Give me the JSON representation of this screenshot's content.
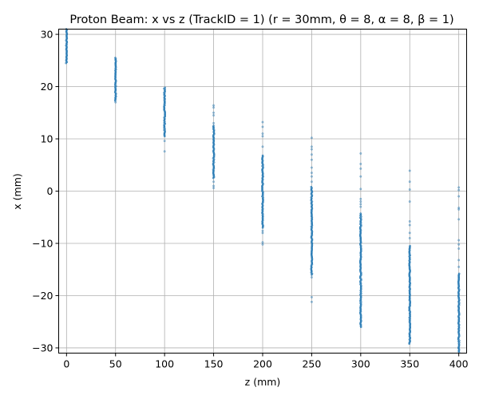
{
  "chart_data": {
    "type": "scatter",
    "title": "Proton Beam: x vs z (TrackID = 1) (r = 30mm, θ = 8, α = 8, β = 1)",
    "xlabel": "z (mm)",
    "ylabel": "x (mm)",
    "xlim": [
      -8,
      408
    ],
    "ylim": [
      -31,
      31
    ],
    "x_ticks": [
      0,
      50,
      100,
      150,
      200,
      250,
      300,
      350,
      400
    ],
    "y_ticks": [
      -30,
      -20,
      -10,
      0,
      10,
      20,
      30
    ],
    "grid": true,
    "marker_color": "#1f77b4",
    "series": [
      {
        "columns": [
          {
            "z": 0,
            "core": [
              24.5,
              31
            ],
            "outliers": []
          },
          {
            "z": 50,
            "core": [
              17.3,
              25.5
            ],
            "outliers": [
              17.0
            ]
          },
          {
            "z": 100,
            "core": [
              10.5,
              19.8
            ],
            "outliers": [
              7.6,
              9.6
            ]
          },
          {
            "z": 150,
            "core": [
              2.5,
              12.5
            ],
            "outliers": [
              0.6,
              1.0,
              1.8,
              13.0,
              14.5,
              15.0,
              16.0,
              16.4
            ]
          },
          {
            "z": 200,
            "core": [
              -7.0,
              6.8
            ],
            "outliers": [
              -10.2,
              -9.8,
              -8.0,
              -7.6,
              8.5,
              10.5,
              11.0,
              12.3,
              13.2
            ]
          },
          {
            "z": 250,
            "core": [
              -16.0,
              0.8
            ],
            "outliers": [
              -21.2,
              -20.3,
              -16.5,
              1.8,
              2.8,
              3.5,
              4.5,
              6.0,
              7.0,
              8.0,
              8.5,
              10.2
            ]
          },
          {
            "z": 300,
            "core": [
              -26.0,
              -4.3
            ],
            "outliers": [
              -3.0,
              -2.5,
              -2.0,
              -1.5,
              0.4,
              2.8,
              4.3,
              5.2,
              7.2
            ]
          },
          {
            "z": 350,
            "core": [
              -29.2,
              -10.5
            ],
            "outliers": [
              -9.0,
              -8.0,
              -6.5,
              -5.8,
              -2.0,
              0.3,
              1.8,
              3.9
            ]
          },
          {
            "z": 400,
            "core": [
              -30.8,
              -15.8
            ],
            "outliers": [
              -14.5,
              -13.2,
              -11.0,
              -10.2,
              -9.4,
              -5.4,
              -3.5,
              -3.2,
              -1.0,
              0.2,
              0.7
            ]
          }
        ]
      }
    ]
  }
}
